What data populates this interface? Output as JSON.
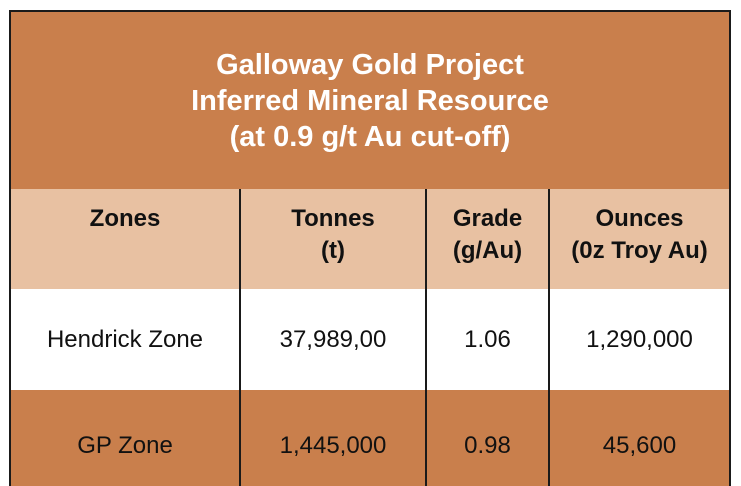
{
  "title": {
    "line1": "Galloway Gold Project",
    "line2": "Inferred Mineral Resource",
    "line3": "(at 0.9 g/t Au cut-off)"
  },
  "headers": [
    {
      "line1": "Zones",
      "line2": ""
    },
    {
      "line1": "Tonnes",
      "line2": "(t)"
    },
    {
      "line1": "Grade",
      "line2": "(g/Au)"
    },
    {
      "line1": "Ounces",
      "line2": "(0z Troy Au)"
    }
  ],
  "rows": [
    {
      "zone": "Hendrick Zone",
      "tonnes": "37,989,00",
      "grade": "1.06",
      "ounces": "1,290,000"
    },
    {
      "zone": "GP Zone",
      "tonnes": "1,445,000",
      "grade": "0.98",
      "ounces": "45,600"
    }
  ],
  "colors": {
    "title_bg": "#c97f4c",
    "header_bg": "#e8c1a2",
    "row_light": "#ffffff",
    "row_dark": "#c97f4c"
  }
}
